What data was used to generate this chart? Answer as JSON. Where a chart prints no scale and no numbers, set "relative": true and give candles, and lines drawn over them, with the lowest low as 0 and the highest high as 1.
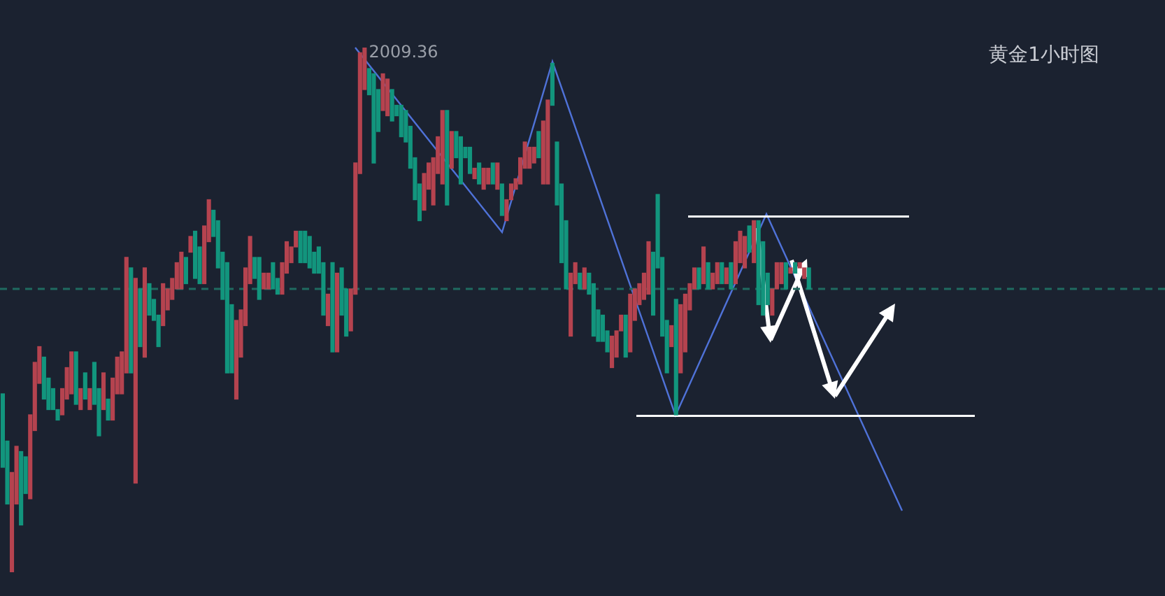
{
  "chart_data": {
    "type": "candlestick",
    "title": "黄金1小时图",
    "relative": true,
    "legend": false,
    "categories": [
      null,
      null,
      null,
      null,
      null,
      null,
      null,
      null,
      null,
      null,
      null,
      null,
      null,
      null,
      null,
      null,
      null,
      null,
      null,
      null,
      null,
      null,
      null,
      null,
      null,
      null,
      null,
      null,
      null,
      null,
      null,
      null,
      null,
      null,
      null,
      null,
      null,
      null,
      null,
      null,
      null,
      null,
      null,
      null,
      null,
      null,
      null,
      null,
      null,
      null,
      null,
      null,
      null,
      null,
      null,
      null,
      null,
      null,
      null,
      null,
      null,
      null,
      null,
      null,
      null,
      null,
      null,
      null,
      null,
      null,
      null,
      null,
      null,
      null,
      null,
      null,
      null,
      null,
      null,
      null,
      null,
      null,
      null,
      null,
      null,
      null,
      null,
      null,
      null,
      null,
      null,
      null,
      null,
      null,
      null,
      null,
      null,
      null,
      null,
      null,
      null,
      null,
      null,
      null,
      null,
      null,
      null,
      null,
      null,
      null,
      null,
      null,
      null,
      null,
      null,
      null,
      null,
      null,
      null,
      null,
      null,
      null,
      null,
      null,
      null,
      null,
      null,
      null,
      null,
      null,
      null,
      null,
      null,
      null,
      null,
      null,
      null,
      null,
      null,
      null,
      null,
      null,
      null,
      null,
      null,
      null,
      null,
      null,
      null,
      null,
      null,
      null,
      null,
      null,
      null,
      null,
      null,
      null,
      null,
      null,
      null,
      null,
      null,
      null,
      null,
      null,
      null,
      null,
      null,
      null,
      null,
      null,
      null,
      null,
      null,
      null,
      null
    ],
    "ohlc": [
      [
        0.34,
        0.34,
        0.2,
        0.2
      ],
      [
        0.25,
        0.25,
        0.13,
        0.13
      ],
      [
        0,
        0.19,
        0,
        0.19
      ],
      [
        0.13,
        0.24,
        0.13,
        0.24
      ],
      [
        0.23,
        0.23,
        0.09,
        0.09
      ],
      [
        0.22,
        0.22,
        0.15,
        0.15
      ],
      [
        0.14,
        0.3,
        0.14,
        0.3
      ],
      [
        0.27,
        0.4,
        0.27,
        0.4
      ],
      [
        0.36,
        0.43,
        0.36,
        0.43
      ],
      [
        0.41,
        0.41,
        0.33,
        0.33
      ],
      [
        0.37,
        0.37,
        0.31,
        0.31
      ],
      [
        0.35,
        0.35,
        0.31,
        0.31
      ],
      [
        0.31,
        0.31,
        0.29,
        0.29
      ],
      [
        0.3,
        0.35,
        0.3,
        0.35
      ],
      [
        0.33,
        0.39,
        0.33,
        0.39
      ],
      [
        0.34,
        0.42,
        0.34,
        0.42
      ],
      [
        0.42,
        0.42,
        0.32,
        0.32
      ],
      [
        0.31,
        0.35,
        0.31,
        0.35
      ],
      [
        0.38,
        0.38,
        0.33,
        0.33
      ],
      [
        0.31,
        0.35,
        0.31,
        0.35
      ],
      [
        0.4,
        0.4,
        0.32,
        0.32
      ],
      [
        0.35,
        0.35,
        0.26,
        0.26
      ],
      [
        0.31,
        0.38,
        0.31,
        0.38
      ],
      [
        0.33,
        0.33,
        0.29,
        0.29
      ],
      [
        0.29,
        0.37,
        0.29,
        0.37
      ],
      [
        0.34,
        0.41,
        0.34,
        0.41
      ],
      [
        0.34,
        0.42,
        0.34,
        0.42
      ],
      [
        0.38,
        0.6,
        0.38,
        0.6
      ],
      [
        0.58,
        0.58,
        0.38,
        0.38
      ],
      [
        0.17,
        0.56,
        0.17,
        0.56
      ],
      [
        0.54,
        0.54,
        0.43,
        0.43
      ],
      [
        0.41,
        0.58,
        0.41,
        0.58
      ],
      [
        0.55,
        0.55,
        0.49,
        0.49
      ],
      [
        0.52,
        0.52,
        0.48,
        0.48
      ],
      [
        0.49,
        0.49,
        0.43,
        0.43
      ],
      [
        0.47,
        0.55,
        0.47,
        0.55
      ],
      [
        0.5,
        0.54,
        0.5,
        0.54
      ],
      [
        0.52,
        0.56,
        0.52,
        0.56
      ],
      [
        0.54,
        0.59,
        0.54,
        0.59
      ],
      [
        0.54,
        0.61,
        0.54,
        0.61
      ],
      [
        0.6,
        0.6,
        0.55,
        0.55
      ],
      [
        0.61,
        0.64,
        0.61,
        0.64
      ],
      [
        0.65,
        0.65,
        0.56,
        0.56
      ],
      [
        0.62,
        0.62,
        0.55,
        0.55
      ],
      [
        0.55,
        0.66,
        0.55,
        0.66
      ],
      [
        0.63,
        0.71,
        0.63,
        0.71
      ],
      [
        0.69,
        0.69,
        0.64,
        0.64
      ],
      [
        0.67,
        0.67,
        0.58,
        0.58
      ],
      [
        0.61,
        0.61,
        0.52,
        0.52
      ],
      [
        0.59,
        0.59,
        0.38,
        0.38
      ],
      [
        0.51,
        0.51,
        0.38,
        0.38
      ],
      [
        0.33,
        0.48,
        0.33,
        0.48
      ],
      [
        0.41,
        0.5,
        0.41,
        0.5
      ],
      [
        0.47,
        0.58,
        0.47,
        0.58
      ],
      [
        0.55,
        0.64,
        0.55,
        0.64
      ],
      [
        0.6,
        0.6,
        0.56,
        0.56
      ],
      [
        0.6,
        0.6,
        0.52,
        0.52
      ],
      [
        0.54,
        0.57,
        0.54,
        0.57
      ],
      [
        0.54,
        0.57,
        0.54,
        0.57
      ],
      [
        0.59,
        0.59,
        0.54,
        0.54
      ],
      [
        0.56,
        0.56,
        0.53,
        0.53
      ],
      [
        0.53,
        0.59,
        0.53,
        0.59
      ],
      [
        0.57,
        0.63,
        0.57,
        0.63
      ],
      [
        0.59,
        0.62,
        0.59,
        0.62
      ],
      [
        0.62,
        0.65,
        0.62,
        0.65
      ],
      [
        0.65,
        0.65,
        0.59,
        0.59
      ],
      [
        0.65,
        0.65,
        0.59,
        0.59
      ],
      [
        0.64,
        0.64,
        0.58,
        0.58
      ],
      [
        0.61,
        0.61,
        0.57,
        0.57
      ],
      [
        0.62,
        0.62,
        0.57,
        0.57
      ],
      [
        0.59,
        0.59,
        0.49,
        0.49
      ],
      [
        0.47,
        0.53,
        0.47,
        0.53
      ],
      [
        0.59,
        0.59,
        0.42,
        0.42
      ],
      [
        0.42,
        0.57,
        0.42,
        0.57
      ],
      [
        0.58,
        0.58,
        0.49,
        0.49
      ],
      [
        0.54,
        0.54,
        0.45,
        0.45
      ],
      [
        0.46,
        0.54,
        0.46,
        0.54
      ],
      [
        0.53,
        0.78,
        0.53,
        0.78
      ],
      [
        0.76,
        0.99,
        0.76,
        0.99
      ],
      [
        0.92,
        1,
        0.92,
        1
      ],
      [
        0.96,
        0.96,
        0.91,
        0.91
      ],
      [
        0.95,
        0.95,
        0.78,
        0.78
      ],
      [
        0.92,
        0.92,
        0.84,
        0.84
      ],
      [
        0.88,
        0.95,
        0.88,
        0.95
      ],
      [
        0.87,
        0.94,
        0.87,
        0.94
      ],
      [
        0.92,
        0.92,
        0.86,
        0.86
      ],
      [
        0.89,
        0.89,
        0.87,
        0.87
      ],
      [
        0.89,
        0.89,
        0.83,
        0.83
      ],
      [
        0.88,
        0.88,
        0.82,
        0.82
      ],
      [
        0.85,
        0.85,
        0.77,
        0.77
      ],
      [
        0.79,
        0.79,
        0.71,
        0.71
      ],
      [
        0.74,
        0.74,
        0.67,
        0.67
      ],
      [
        0.69,
        0.76,
        0.69,
        0.76
      ],
      [
        0.73,
        0.78,
        0.73,
        0.78
      ],
      [
        0.7,
        0.79,
        0.7,
        0.79
      ],
      [
        0.76,
        0.83,
        0.76,
        0.83
      ],
      [
        0.74,
        0.88,
        0.74,
        0.88
      ],
      [
        0.88,
        0.88,
        0.7,
        0.7
      ],
      [
        0.77,
        0.84,
        0.77,
        0.84
      ],
      [
        0.84,
        0.84,
        0.79,
        0.79
      ],
      [
        0.83,
        0.83,
        0.74,
        0.74
      ],
      [
        0.81,
        0.81,
        0.79,
        0.79
      ],
      [
        0.81,
        0.81,
        0.76,
        0.76
      ],
      [
        0.75,
        0.77,
        0.75,
        0.77
      ],
      [
        0.78,
        0.78,
        0.74,
        0.74
      ],
      [
        0.73,
        0.77,
        0.73,
        0.77
      ],
      [
        0.74,
        0.77,
        0.74,
        0.77
      ],
      [
        0.78,
        0.78,
        0.74,
        0.74
      ],
      [
        0.73,
        0.78,
        0.73,
        0.78
      ],
      [
        0.74,
        0.74,
        0.68,
        0.68
      ],
      [
        0.67,
        0.71,
        0.67,
        0.71
      ],
      [
        0.71,
        0.74,
        0.71,
        0.74
      ],
      [
        0.73,
        0.75,
        0.73,
        0.75
      ],
      [
        0.74,
        0.79,
        0.74,
        0.79
      ],
      [
        0.77,
        0.82,
        0.77,
        0.82
      ],
      [
        0.77,
        0.81,
        0.77,
        0.81
      ],
      [
        0.78,
        0.81,
        0.78,
        0.81
      ],
      [
        0.84,
        0.84,
        0.79,
        0.79
      ],
      [
        0.74,
        0.86,
        0.74,
        0.86
      ],
      [
        0.74,
        0.9,
        0.74,
        0.9
      ],
      [
        0.97,
        0.97,
        0.89,
        0.89
      ],
      [
        0.82,
        0.82,
        0.7,
        0.7
      ],
      [
        0.74,
        0.74,
        0.59,
        0.59
      ],
      [
        0.67,
        0.67,
        0.54,
        0.54
      ],
      [
        0.45,
        0.57,
        0.45,
        0.57
      ],
      [
        0.55,
        0.59,
        0.55,
        0.59
      ],
      [
        0.57,
        0.57,
        0.54,
        0.54
      ],
      [
        0.54,
        0.58,
        0.54,
        0.58
      ],
      [
        0.57,
        0.57,
        0.53,
        0.53
      ],
      [
        0.55,
        0.55,
        0.45,
        0.45
      ],
      [
        0.5,
        0.5,
        0.44,
        0.44
      ],
      [
        0.49,
        0.49,
        0.44,
        0.44
      ],
      [
        0.46,
        0.46,
        0.42,
        0.42
      ],
      [
        0.39,
        0.45,
        0.39,
        0.45
      ],
      [
        0.41,
        0.46,
        0.41,
        0.46
      ],
      [
        0.46,
        0.49,
        0.46,
        0.49
      ],
      [
        0.49,
        0.49,
        0.41,
        0.41
      ],
      [
        0.42,
        0.53,
        0.42,
        0.53
      ],
      [
        0.48,
        0.54,
        0.48,
        0.54
      ],
      [
        0.51,
        0.55,
        0.51,
        0.55
      ],
      [
        0.52,
        0.57,
        0.52,
        0.57
      ],
      [
        0.53,
        0.63,
        0.53,
        0.63
      ],
      [
        0.61,
        0.61,
        0.49,
        0.49
      ],
      [
        0.72,
        0.72,
        0.58,
        0.58
      ],
      [
        0.6,
        0.6,
        0.45,
        0.45
      ],
      [
        0.48,
        0.48,
        0.38,
        0.38
      ],
      [
        0.43,
        0.47,
        0.43,
        0.47
      ],
      [
        0.52,
        0.52,
        0.3,
        0.3
      ],
      [
        0.38,
        0.51,
        0.38,
        0.51
      ],
      [
        0.42,
        0.53,
        0.42,
        0.53
      ],
      [
        0.5,
        0.55,
        0.5,
        0.55
      ],
      [
        0.54,
        0.58,
        0.54,
        0.58
      ],
      [
        0.58,
        0.58,
        0.54,
        0.54
      ],
      [
        0.55,
        0.62,
        0.55,
        0.62
      ],
      [
        0.59,
        0.59,
        0.54,
        0.54
      ],
      [
        0.54,
        0.57,
        0.54,
        0.57
      ],
      [
        0.55,
        0.59,
        0.55,
        0.59
      ],
      [
        0.59,
        0.59,
        0.55,
        0.55
      ],
      [
        0.55,
        0.58,
        0.55,
        0.58
      ],
      [
        0.59,
        0.59,
        0.54,
        0.54
      ],
      [
        0.55,
        0.63,
        0.55,
        0.63
      ],
      [
        0.59,
        0.65,
        0.59,
        0.65
      ],
      [
        0.58,
        0.64,
        0.58,
        0.64
      ],
      [
        0.66,
        0.66,
        0.61,
        0.61
      ],
      [
        0.59,
        0.67,
        0.59,
        0.67
      ],
      [
        0.67,
        0.67,
        0.51,
        0.51
      ],
      [
        0.63,
        0.63,
        0.49,
        0.49
      ],
      [
        0.57,
        0.57,
        0.51,
        0.51
      ],
      [
        0.49,
        0.54,
        0.49,
        0.54
      ],
      [
        0.54,
        0.59,
        0.54,
        0.59
      ],
      [
        0.55,
        0.59,
        0.55,
        0.59
      ],
      [
        0.59,
        0.59,
        0.54,
        0.54
      ],
      [
        0.57,
        0.58,
        0.57,
        0.58
      ],
      [
        0.59,
        0.59,
        0.57,
        0.57
      ],
      [
        0.58,
        0.59,
        0.58,
        0.59
      ],
      [
        0.56,
        0.58,
        0.56,
        0.58
      ],
      [
        0.58,
        0.58,
        0.54,
        0.54
      ]
    ],
    "colors": [
      "#12957d",
      "#12957d",
      "#b5434f",
      "#b5434f",
      "#12957d",
      "#12957d",
      "#b5434f",
      "#b5434f",
      "#b5434f",
      "#12957d",
      "#12957d",
      "#12957d",
      "#12957d",
      "#b5434f",
      "#b5434f",
      "#b5434f",
      "#12957d",
      "#b5434f",
      "#12957d",
      "#b5434f",
      "#12957d",
      "#12957d",
      "#b5434f",
      "#12957d",
      "#b5434f",
      "#b5434f",
      "#b5434f",
      "#b5434f",
      "#12957d",
      "#b5434f",
      "#12957d",
      "#b5434f",
      "#12957d",
      "#12957d",
      "#12957d",
      "#b5434f",
      "#b5434f",
      "#b5434f",
      "#b5434f",
      "#b5434f",
      "#12957d",
      "#b5434f",
      "#12957d",
      "#12957d",
      "#b5434f",
      "#b5434f",
      "#12957d",
      "#12957d",
      "#12957d",
      "#12957d",
      "#12957d",
      "#b5434f",
      "#b5434f",
      "#b5434f",
      "#b5434f",
      "#12957d",
      "#12957d",
      "#b5434f",
      "#b5434f",
      "#12957d",
      "#12957d",
      "#b5434f",
      "#b5434f",
      "#b5434f",
      "#b5434f",
      "#12957d",
      "#12957d",
      "#12957d",
      "#12957d",
      "#12957d",
      "#12957d",
      "#b5434f",
      "#12957d",
      "#b5434f",
      "#12957d",
      "#12957d",
      "#b5434f",
      "#b5434f",
      "#b5434f",
      "#b5434f",
      "#12957d",
      "#12957d",
      "#12957d",
      "#b5434f",
      "#b5434f",
      "#12957d",
      "#12957d",
      "#12957d",
      "#12957d",
      "#12957d",
      "#12957d",
      "#12957d",
      "#b5434f",
      "#b5434f",
      "#b5434f",
      "#b5434f",
      "#b5434f",
      "#12957d",
      "#b5434f",
      "#12957d",
      "#12957d",
      "#12957d",
      "#12957d",
      "#b5434f",
      "#12957d",
      "#b5434f",
      "#b5434f",
      "#12957d",
      "#b5434f",
      "#12957d",
      "#b5434f",
      "#b5434f",
      "#b5434f",
      "#b5434f",
      "#b5434f",
      "#b5434f",
      "#b5434f",
      "#12957d",
      "#b5434f",
      "#b5434f",
      "#12957d",
      "#12957d",
      "#12957d",
      "#12957d",
      "#b5434f",
      "#b5434f",
      "#12957d",
      "#b5434f",
      "#12957d",
      "#12957d",
      "#12957d",
      "#12957d",
      "#12957d",
      "#b5434f",
      "#b5434f",
      "#b5434f",
      "#12957d",
      "#b5434f",
      "#b5434f",
      "#b5434f",
      "#b5434f",
      "#b5434f",
      "#12957d",
      "#12957d",
      "#12957d",
      "#12957d",
      "#b5434f",
      "#12957d",
      "#b5434f",
      "#b5434f",
      "#b5434f",
      "#b5434f",
      "#12957d",
      "#b5434f",
      "#12957d",
      "#b5434f",
      "#b5434f",
      "#12957d",
      "#b5434f",
      "#12957d",
      "#b5434f",
      "#b5434f",
      "#b5434f",
      "#12957d",
      "#b5434f",
      "#12957d",
      "#12957d",
      "#12957d",
      "#b5434f",
      "#b5434f",
      "#b5434f",
      "#12957d",
      "#b5434f",
      "#12957d",
      "#b5434f",
      "#b5434f",
      "#12957d"
    ],
    "ref_lines": [
      {
        "axis": "y",
        "value": 0.54,
        "color": "#1f6b60",
        "line_style": "dashed"
      }
    ],
    "annotations": [
      "2009.36"
    ]
  }
}
